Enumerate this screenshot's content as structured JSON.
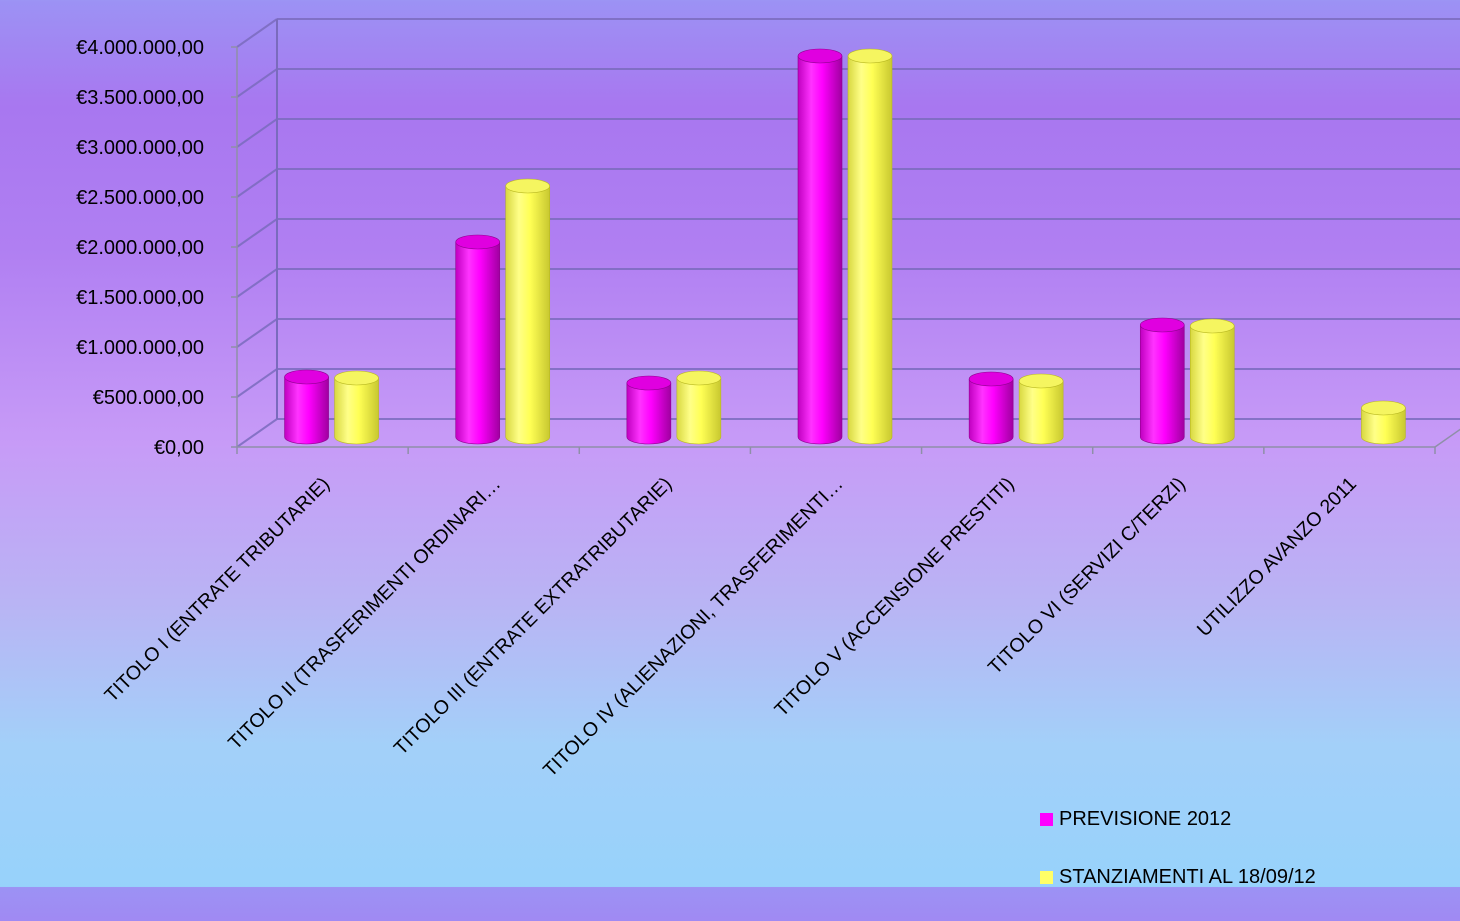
{
  "chart_data": {
    "type": "bar",
    "title": "",
    "xlabel": "",
    "ylabel": "",
    "ylim": [
      0,
      4000000
    ],
    "yticks": [
      0,
      500000,
      1000000,
      1500000,
      2000000,
      2500000,
      3000000,
      3500000,
      4000000
    ],
    "ytick_labels": [
      "€0,00",
      "€500.000,00",
      "€1.000.000,00",
      "€1.500.000,00",
      "€2.000.000,00",
      "€2.500.000,00",
      "€3.000.000,00",
      "€3.500.000,00",
      "€4.000.000,00"
    ],
    "grid": true,
    "legend_position": "bottom-right",
    "categories": [
      "TITOLO I (ENTRATE TRIBUTARIE)",
      "TITOLO II (TRASFERIMENTI ORDINARI…",
      "TITOLO III (ENTRATE EXTRATRIBUTARIE)",
      "TITOLO IV (ALIENAZIONI, TRASFERIMENTI…",
      "TITOLO V (ACCENSIONE PRESTITI)",
      "TITOLO VI (SERVIZI C/TERZI)",
      "UTILIZZO AVANZO 2011"
    ],
    "series": [
      {
        "name": "PREVISIONE 2012",
        "color": "#ff00ff",
        "values": [
          600000,
          1950000,
          540000,
          3810000,
          580000,
          1120000,
          0
        ]
      },
      {
        "name": "STANZIAMENTI AL 18/09/12",
        "color": "#ffff66",
        "values": [
          590000,
          2510000,
          590000,
          3810000,
          560000,
          1110000,
          290000
        ]
      }
    ]
  }
}
